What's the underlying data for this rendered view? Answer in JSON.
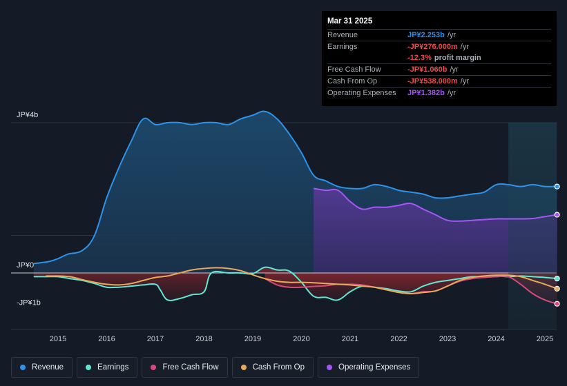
{
  "tooltip": {
    "date": "Mar 31 2025",
    "rows": [
      {
        "label": "Revenue",
        "value": "JP¥2.253b",
        "unit": "/yr"
      },
      {
        "label": "Earnings",
        "value": "-JP¥276.000m",
        "unit": "/yr"
      },
      {
        "label": "",
        "value": "-12.3%",
        "unit": "profit margin"
      },
      {
        "label": "Free Cash Flow",
        "value": "-JP¥1.060b",
        "unit": "/yr"
      },
      {
        "label": "Cash From Op",
        "value": "-JP¥538.000m",
        "unit": "/yr"
      },
      {
        "label": "Operating Expenses",
        "value": "JP¥1.382b",
        "unit": "/yr"
      }
    ]
  },
  "legend": [
    {
      "label": "Revenue",
      "color": "#2e93e8"
    },
    {
      "label": "Earnings",
      "color": "#5ee8d4"
    },
    {
      "label": "Free Cash Flow",
      "color": "#d9487d"
    },
    {
      "label": "Cash From Op",
      "color": "#e8aa5a"
    },
    {
      "label": "Operating Expenses",
      "color": "#a855f7"
    }
  ],
  "chart_data": {
    "type": "area",
    "title": "",
    "xlabel": "",
    "ylabel": "",
    "currency": "JPY",
    "y_tick_labels": [
      "JP¥4b",
      "JP¥0",
      "-JP¥1b"
    ],
    "x_tick_labels": [
      "2015",
      "2016",
      "2017",
      "2018",
      "2019",
      "2020",
      "2021",
      "2022",
      "2023",
      "2024",
      "2025"
    ],
    "x_range": [
      2014.45,
      2025.25
    ],
    "ylim": [
      -1.25,
      4.0
    ],
    "grid": true,
    "forecast_shade_start": 2024.25,
    "series": [
      {
        "name": "Revenue",
        "color": "#2e93e8",
        "fill": true,
        "x": [
          2014.5,
          2014.8,
          2015.0,
          2015.2,
          2015.5,
          2015.75,
          2016.0,
          2016.25,
          2016.5,
          2016.75,
          2017.0,
          2017.25,
          2017.5,
          2017.75,
          2018.0,
          2018.25,
          2018.5,
          2018.75,
          2019.0,
          2019.25,
          2019.5,
          2019.75,
          2020.0,
          2020.25,
          2020.5,
          2020.75,
          2021.0,
          2021.25,
          2021.5,
          2021.75,
          2022.0,
          2022.25,
          2022.5,
          2022.75,
          2023.0,
          2023.25,
          2023.5,
          2023.75,
          2024.0,
          2024.25,
          2024.5,
          2024.75,
          2025.0,
          2025.25
        ],
        "y": [
          0.25,
          0.3,
          0.38,
          0.5,
          0.6,
          1.0,
          2.0,
          2.8,
          3.5,
          4.1,
          3.95,
          4.0,
          4.0,
          3.95,
          4.0,
          4.0,
          3.95,
          4.1,
          4.2,
          4.3,
          4.1,
          3.7,
          3.2,
          2.6,
          2.45,
          2.3,
          2.25,
          2.25,
          2.35,
          2.3,
          2.2,
          2.15,
          2.1,
          2.0,
          2.0,
          2.05,
          2.1,
          2.15,
          2.35,
          2.35,
          2.3,
          2.35,
          2.3,
          2.3
        ]
      },
      {
        "name": "Operating Expenses",
        "color": "#a855f7",
        "fill": true,
        "x": [
          2020.25,
          2020.5,
          2020.75,
          2021.0,
          2021.25,
          2021.5,
          2021.75,
          2022.0,
          2022.25,
          2022.5,
          2022.75,
          2023.0,
          2023.25,
          2023.5,
          2023.75,
          2024.0,
          2024.25,
          2024.5,
          2024.75,
          2025.0,
          2025.25
        ],
        "y": [
          2.25,
          2.2,
          2.2,
          1.9,
          1.7,
          1.75,
          1.75,
          1.8,
          1.85,
          1.7,
          1.55,
          1.4,
          1.38,
          1.4,
          1.42,
          1.44,
          1.44,
          1.44,
          1.45,
          1.5,
          1.55
        ]
      },
      {
        "name": "Earnings",
        "color": "#5ee8d4",
        "fill": true,
        "x": [
          2014.5,
          2014.75,
          2015.0,
          2015.25,
          2015.5,
          2015.75,
          2016.0,
          2016.25,
          2016.5,
          2016.75,
          2017.0,
          2017.1,
          2017.25,
          2017.5,
          2017.75,
          2018.0,
          2018.15,
          2018.5,
          2018.75,
          2019.0,
          2019.25,
          2019.5,
          2019.75,
          2020.0,
          2020.25,
          2020.5,
          2020.75,
          2021.0,
          2021.25,
          2021.5,
          2021.75,
          2022.0,
          2022.25,
          2022.5,
          2022.75,
          2023.0,
          2023.25,
          2023.5,
          2023.75,
          2024.0,
          2024.25,
          2024.5,
          2024.75,
          2025.0,
          2025.25
        ],
        "y": [
          -0.1,
          -0.1,
          -0.1,
          -0.15,
          -0.2,
          -0.28,
          -0.38,
          -0.38,
          -0.35,
          -0.32,
          -0.3,
          -0.45,
          -0.72,
          -0.68,
          -0.58,
          -0.5,
          0.0,
          0.0,
          0.0,
          -0.02,
          0.15,
          0.08,
          0.05,
          -0.25,
          -0.62,
          -0.65,
          -0.72,
          -0.5,
          -0.35,
          -0.38,
          -0.42,
          -0.48,
          -0.5,
          -0.35,
          -0.25,
          -0.2,
          -0.15,
          -0.1,
          -0.1,
          -0.08,
          -0.1,
          -0.08,
          -0.1,
          -0.12,
          -0.15
        ]
      },
      {
        "name": "Free Cash Flow",
        "color": "#d9487d",
        "fill": true,
        "x": [
          2019.25,
          2019.5,
          2019.75,
          2020.0,
          2020.25,
          2020.5,
          2020.75,
          2021.0,
          2021.25,
          2021.5,
          2021.75,
          2022.0,
          2022.25,
          2022.5,
          2022.75,
          2023.0,
          2023.25,
          2023.5,
          2023.75,
          2024.0,
          2024.25,
          2024.5,
          2024.75,
          2025.0,
          2025.25
        ],
        "y": [
          -0.15,
          -0.32,
          -0.38,
          -0.38,
          -0.36,
          -0.34,
          -0.3,
          -0.3,
          -0.32,
          -0.38,
          -0.45,
          -0.52,
          -0.55,
          -0.5,
          -0.48,
          -0.35,
          -0.22,
          -0.15,
          -0.12,
          -0.1,
          -0.1,
          -0.3,
          -0.55,
          -0.72,
          -0.82
        ]
      },
      {
        "name": "Cash From Op",
        "color": "#e8aa5a",
        "fill": false,
        "x": [
          2014.75,
          2015.0,
          2015.25,
          2015.5,
          2015.75,
          2016.0,
          2016.25,
          2016.5,
          2016.75,
          2017.0,
          2017.25,
          2017.5,
          2017.75,
          2018.0,
          2018.25,
          2018.5,
          2018.75,
          2019.0,
          2019.25,
          2019.5,
          2019.75,
          2020.0,
          2020.25,
          2020.5,
          2020.75,
          2021.0,
          2021.25,
          2021.5,
          2021.75,
          2022.0,
          2022.25,
          2022.5,
          2022.75,
          2023.0,
          2023.25,
          2023.5,
          2023.75,
          2024.0,
          2024.25,
          2024.5,
          2024.75,
          2025.0,
          2025.25
        ],
        "y": [
          -0.08,
          -0.08,
          -0.1,
          -0.18,
          -0.25,
          -0.3,
          -0.32,
          -0.28,
          -0.2,
          -0.12,
          -0.08,
          0.0,
          0.08,
          0.12,
          0.14,
          0.12,
          0.06,
          -0.05,
          -0.15,
          -0.22,
          -0.25,
          -0.25,
          -0.26,
          -0.28,
          -0.3,
          -0.32,
          -0.35,
          -0.38,
          -0.45,
          -0.52,
          -0.55,
          -0.52,
          -0.48,
          -0.35,
          -0.2,
          -0.12,
          -0.08,
          -0.06,
          -0.06,
          -0.1,
          -0.2,
          -0.3,
          -0.42
        ]
      }
    ]
  }
}
